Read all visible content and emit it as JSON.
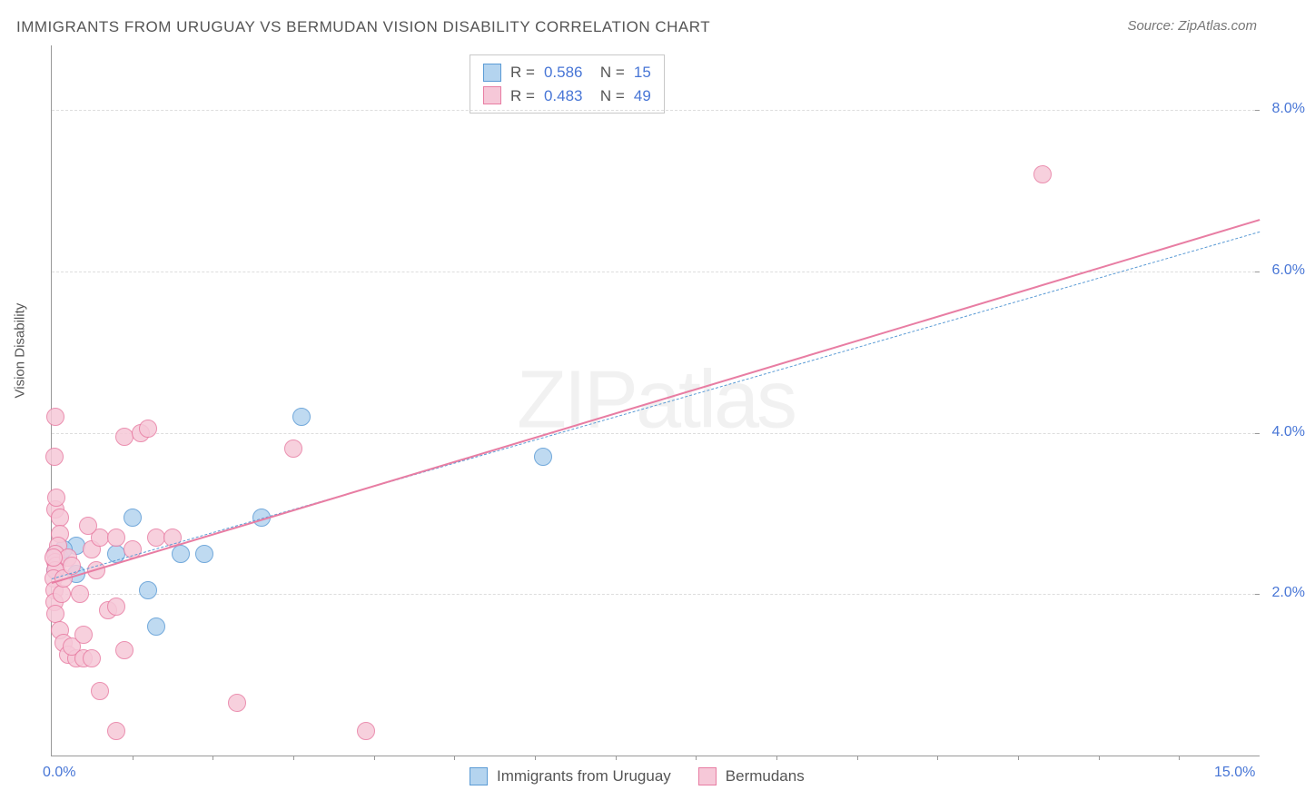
{
  "title": "IMMIGRANTS FROM URUGUAY VS BERMUDAN VISION DISABILITY CORRELATION CHART",
  "source": "Source: ZipAtlas.com",
  "watermark": "ZIPatlas",
  "chart": {
    "type": "scatter",
    "background_color": "#ffffff",
    "grid_color": "#dddddd",
    "axis_color": "#999999",
    "tick_label_color": "#4876d6",
    "axis_title_color": "#555555",
    "title_color": "#555555",
    "title_fontsize": 17,
    "tick_fontsize": 16,
    "y_axis_title": "Vision Disability",
    "xlim": [
      0,
      15
    ],
    "ylim": [
      0,
      8.8
    ],
    "x_ticks_major": [
      0,
      5,
      10,
      15
    ],
    "x_ticks_labeled": [
      0,
      15
    ],
    "x_tick_labels": [
      "0.0%",
      "15.0%"
    ],
    "y_ticks": [
      2,
      4,
      6,
      8
    ],
    "y_tick_labels": [
      "2.0%",
      "4.0%",
      "6.0%",
      "8.0%"
    ],
    "marker_size": 20,
    "marker_opacity_fill": 0.35,
    "series": [
      {
        "name": "Immigrants from Uruguay",
        "color_stroke": "#5b9bd5",
        "color_fill": "#b4d4ef",
        "r_value": "0.586",
        "n_value": "15",
        "trend": {
          "x1": 0,
          "y1": 2.2,
          "x2": 15,
          "y2": 6.5,
          "style": "dashed",
          "width": 1.5,
          "color": "#5b9bd5"
        },
        "points": [
          [
            0.05,
            2.5
          ],
          [
            0.1,
            2.45
          ],
          [
            0.3,
            2.6
          ],
          [
            0.3,
            2.25
          ],
          [
            0.8,
            2.5
          ],
          [
            1.0,
            2.95
          ],
          [
            1.2,
            2.05
          ],
          [
            1.6,
            2.5
          ],
          [
            1.9,
            2.5
          ],
          [
            1.3,
            1.6
          ],
          [
            2.6,
            2.95
          ],
          [
            3.1,
            4.2
          ],
          [
            6.1,
            3.7
          ],
          [
            0.05,
            2.3
          ],
          [
            0.15,
            2.55
          ]
        ]
      },
      {
        "name": "Bermudans",
        "color_stroke": "#e87da3",
        "color_fill": "#f6c8d8",
        "r_value": "0.483",
        "n_value": "49",
        "trend": {
          "x1": 0,
          "y1": 2.15,
          "x2": 15,
          "y2": 6.65,
          "style": "solid",
          "width": 2.5,
          "color": "#e87da3"
        },
        "points": [
          [
            0.03,
            3.7
          ],
          [
            0.04,
            4.2
          ],
          [
            0.05,
            3.05
          ],
          [
            0.1,
            2.95
          ],
          [
            0.1,
            2.75
          ],
          [
            0.08,
            2.6
          ],
          [
            0.05,
            2.5
          ],
          [
            0.05,
            2.4
          ],
          [
            0.06,
            2.35
          ],
          [
            0.04,
            2.3
          ],
          [
            0.02,
            2.2
          ],
          [
            0.03,
            2.05
          ],
          [
            0.03,
            1.9
          ],
          [
            0.05,
            1.75
          ],
          [
            0.1,
            1.55
          ],
          [
            0.15,
            1.4
          ],
          [
            0.2,
            1.25
          ],
          [
            0.3,
            1.2
          ],
          [
            0.25,
            1.35
          ],
          [
            0.4,
            1.2
          ],
          [
            0.6,
            0.8
          ],
          [
            0.7,
            1.8
          ],
          [
            0.8,
            1.85
          ],
          [
            0.55,
            2.3
          ],
          [
            0.5,
            2.55
          ],
          [
            0.6,
            2.7
          ],
          [
            0.45,
            2.85
          ],
          [
            0.8,
            2.7
          ],
          [
            1.0,
            2.55
          ],
          [
            1.3,
            2.7
          ],
          [
            0.9,
            3.95
          ],
          [
            1.1,
            4.0
          ],
          [
            1.2,
            4.05
          ],
          [
            1.5,
            2.7
          ],
          [
            2.3,
            0.65
          ],
          [
            3.0,
            3.8
          ],
          [
            3.9,
            0.3
          ],
          [
            0.8,
            0.3
          ],
          [
            12.3,
            7.2
          ],
          [
            0.06,
            3.2
          ],
          [
            0.12,
            2.0
          ],
          [
            0.2,
            2.45
          ],
          [
            0.35,
            2.0
          ],
          [
            0.4,
            1.5
          ],
          [
            0.5,
            1.2
          ],
          [
            0.15,
            2.2
          ],
          [
            0.25,
            2.35
          ],
          [
            0.02,
            2.45
          ],
          [
            0.9,
            1.3
          ]
        ]
      }
    ],
    "legend_bottom": [
      {
        "label": "Immigrants from Uruguay",
        "fill": "#b4d4ef",
        "stroke": "#5b9bd5"
      },
      {
        "label": "Bermudans",
        "fill": "#f6c8d8",
        "stroke": "#e87da3"
      }
    ]
  }
}
